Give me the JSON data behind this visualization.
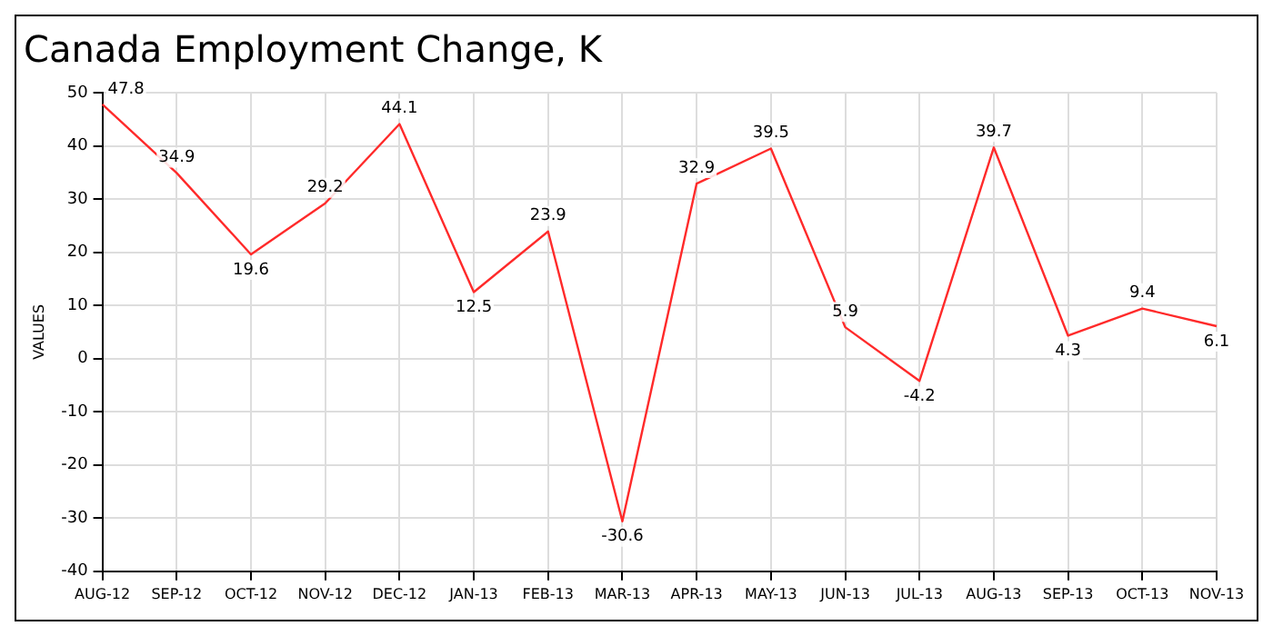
{
  "chart_data": {
    "type": "line",
    "title": "Canada Employment Change, K",
    "ylabel": "VALUES",
    "categories": [
      "AUG-12",
      "SEP-12",
      "OCT-12",
      "NOV-12",
      "DEC-12",
      "JAN-13",
      "FEB-13",
      "MAR-13",
      "APR-13",
      "MAY-13",
      "JUN-13",
      "JUL-13",
      "AUG-13",
      "SEP-13",
      "OCT-13",
      "NOV-13"
    ],
    "series": [
      {
        "color": "#ff2a2a",
        "values": [
          47.8,
          34.9,
          19.6,
          29.2,
          44.1,
          12.5,
          23.9,
          -30.6,
          32.9,
          39.5,
          5.9,
          -4.2,
          39.7,
          4.3,
          9.4,
          6.1
        ]
      }
    ],
    "ylim": [
      -40,
      50
    ],
    "yticks": [
      -40,
      -30,
      -20,
      -10,
      0,
      10,
      20,
      30,
      40,
      50
    ],
    "grid": true,
    "legend": false,
    "marker": "none",
    "line_style": "solid",
    "data_labels": true
  }
}
